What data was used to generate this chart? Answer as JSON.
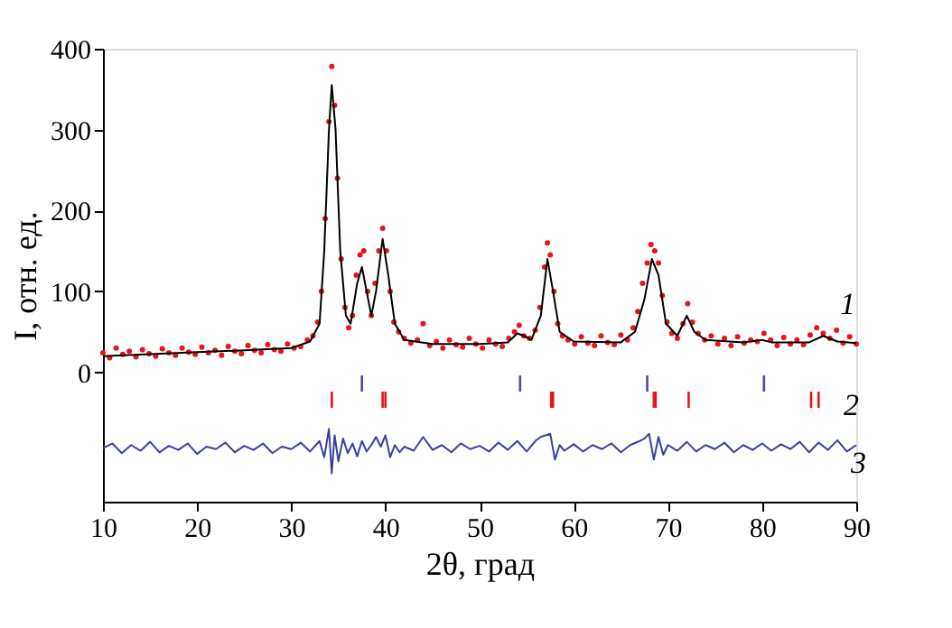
{
  "chart_data": {
    "type": "scatter",
    "xlabel": "2θ, град",
    "ylabel": "I, отн. ед.",
    "xlim": [
      10,
      90
    ],
    "xticks": [
      10,
      20,
      30,
      40,
      50,
      60,
      70,
      80,
      90
    ],
    "ylim": [
      -160,
      400
    ],
    "yticks": [
      0,
      100,
      200,
      300,
      400
    ],
    "annotations": [
      "1",
      "2",
      "3"
    ],
    "series": [
      {
        "marker": "circle",
        "color": "#e8141c",
        "x": [
          10,
          10.7,
          11.4,
          12.1,
          12.8,
          13.5,
          14.2,
          14.9,
          15.6,
          16.3,
          17,
          17.7,
          18.4,
          19.1,
          19.8,
          20.5,
          21.2,
          21.9,
          22.6,
          23.3,
          24,
          24.7,
          25.4,
          26.1,
          26.8,
          27.5,
          28.2,
          28.9,
          29.6,
          30.3,
          31,
          31.7,
          32.3,
          32.8,
          33.2,
          33.6,
          34,
          34.3,
          34.6,
          34.9,
          35.3,
          35.7,
          36.1,
          36.5,
          36.9,
          37.3,
          37.7,
          38.1,
          38.5,
          38.9,
          39.3,
          39.7,
          40.1,
          40.5,
          40.9,
          41.4,
          42,
          42.7,
          43.4,
          44,
          44.7,
          45.4,
          46.1,
          46.8,
          47.5,
          48.2,
          48.9,
          49.6,
          50.3,
          51,
          51.7,
          52.4,
          53.1,
          53.7,
          54.2,
          54.7,
          55.3,
          55.9,
          56.4,
          56.9,
          57.2,
          57.5,
          57.9,
          58.3,
          58.8,
          59.4,
          60.1,
          60.8,
          61.5,
          62.2,
          62.9,
          63.6,
          64.3,
          65,
          65.7,
          66.3,
          66.8,
          67.3,
          67.8,
          68.2,
          68.6,
          69,
          69.4,
          69.9,
          70.4,
          71,
          71.6,
          72.1,
          72.6,
          73.2,
          73.9,
          74.6,
          75.3,
          76,
          76.7,
          77.4,
          78.1,
          78.8,
          79.5,
          80.2,
          80.9,
          81.6,
          82.3,
          83,
          83.7,
          84.4,
          85.1,
          85.8,
          86.5,
          87.2,
          87.9,
          88.6,
          89.3,
          90
        ],
        "values": [
          24,
          18,
          30,
          22,
          26,
          19,
          28,
          23,
          20,
          29,
          24,
          21,
          30,
          25,
          22,
          31,
          24,
          27,
          21,
          32,
          26,
          23,
          33,
          27,
          24,
          34,
          28,
          26,
          35,
          30,
          32,
          40,
          45,
          62,
          100,
          190,
          310,
          378,
          330,
          240,
          140,
          80,
          55,
          70,
          120,
          145,
          150,
          100,
          70,
          110,
          150,
          178,
          150,
          100,
          62,
          50,
          42,
          36,
          40,
          60,
          33,
          38,
          30,
          40,
          34,
          31,
          42,
          35,
          30,
          40,
          35,
          32,
          42,
          50,
          58,
          45,
          42,
          52,
          80,
          130,
          160,
          145,
          100,
          60,
          45,
          40,
          35,
          44,
          36,
          33,
          45,
          37,
          34,
          46,
          40,
          55,
          75,
          110,
          135,
          158,
          150,
          135,
          95,
          62,
          48,
          42,
          60,
          85,
          62,
          48,
          40,
          45,
          35,
          42,
          33,
          44,
          36,
          40,
          38,
          48,
          40,
          33,
          43,
          35,
          40,
          34,
          46,
          55,
          48,
          42,
          52,
          36,
          44,
          35
        ]
      },
      {
        "type": "line",
        "color": "#000000",
        "x": [
          10,
          20,
          25,
          30,
          32,
          33,
          33.5,
          34,
          34.3,
          34.7,
          35.2,
          35.8,
          36.3,
          37,
          37.5,
          38,
          38.5,
          39,
          39.7,
          40.3,
          41,
          42,
          45,
          50,
          53,
          54,
          54.7,
          55.5,
          56.5,
          57.2,
          57.8,
          58.5,
          60,
          65,
          66.5,
          67.5,
          68.3,
          69,
          69.8,
          71,
          72,
          72.8,
          74,
          78,
          80,
          81,
          85,
          86.5,
          88,
          90
        ],
        "values": [
          20,
          25,
          27,
          30,
          38,
          60,
          150,
          300,
          355,
          300,
          150,
          70,
          60,
          110,
          130,
          100,
          70,
          100,
          165,
          120,
          60,
          40,
          35,
          35,
          37,
          48,
          45,
          40,
          70,
          140,
          100,
          50,
          38,
          37,
          50,
          90,
          140,
          120,
          60,
          45,
          70,
          50,
          40,
          37,
          40,
          37,
          37,
          45,
          38,
          36
        ]
      },
      {
        "type": "line",
        "color": "#3a3fa0",
        "x": [
          10,
          11,
          12,
          13,
          14,
          15,
          16,
          17,
          18,
          19,
          20,
          21,
          22,
          23,
          24,
          25,
          26,
          27,
          28,
          29,
          30,
          31,
          32,
          33,
          33.5,
          34,
          34.3,
          34.6,
          35,
          35.5,
          36,
          36.5,
          37,
          37.5,
          38,
          38.5,
          39,
          39.5,
          40,
          40.5,
          41,
          41.5,
          42,
          43,
          44,
          45,
          46,
          47,
          48,
          49,
          50,
          51,
          52,
          53,
          54,
          55,
          56,
          56.5,
          57,
          57.5,
          58,
          58.5,
          59,
          60,
          61,
          62,
          63,
          64,
          65,
          66,
          67,
          67.5,
          68,
          68.5,
          69,
          69.5,
          70,
          71,
          72,
          73,
          74,
          75,
          76,
          77,
          78,
          79,
          80,
          81,
          82,
          83,
          84,
          85,
          86,
          87,
          88,
          89,
          90
        ],
        "values": [
          -94,
          -88,
          -100,
          -90,
          -97,
          -86,
          -99,
          -91,
          -96,
          -88,
          -101,
          -92,
          -95,
          -87,
          -99,
          -91,
          -96,
          -88,
          -100,
          -92,
          -95,
          -87,
          -98,
          -85,
          -105,
          -70,
          -125,
          -78,
          -110,
          -82,
          -100,
          -88,
          -104,
          -85,
          -98,
          -90,
          -80,
          -92,
          -78,
          -105,
          -90,
          -99,
          -92,
          -97,
          -80,
          -96,
          -90,
          -99,
          -88,
          -95,
          -91,
          -98,
          -87,
          -96,
          -85,
          -98,
          -84,
          -80,
          -78,
          -76,
          -108,
          -90,
          -97,
          -89,
          -98,
          -90,
          -95,
          -88,
          -99,
          -90,
          -85,
          -82,
          -76,
          -108,
          -80,
          -102,
          -90,
          -97,
          -86,
          -98,
          -90,
          -95,
          -87,
          -99,
          -90,
          -96,
          -88,
          -97,
          -89,
          -95,
          -86,
          -99,
          -87,
          -96,
          -84,
          -98,
          -90
        ]
      },
      {
        "type": "bar",
        "color": "#4a4aa8",
        "x": [
          37.5,
          54.3,
          67.8,
          80.2
        ],
        "base": [
          -24,
          -24,
          -24,
          -24
        ],
        "values": [
          20,
          20,
          20,
          20
        ]
      },
      {
        "type": "bar",
        "color": "#e8141c",
        "x": [
          34.3,
          39.7,
          40.0,
          57.6,
          57.8,
          68.5,
          68.7,
          72.2,
          85.2,
          86.0
        ],
        "base": [
          -44,
          -44,
          -44,
          -44,
          -44,
          -44,
          -44,
          -44,
          -44,
          -44
        ],
        "values": [
          20,
          20,
          20,
          20,
          20,
          20,
          20,
          20,
          20,
          20
        ]
      }
    ]
  }
}
